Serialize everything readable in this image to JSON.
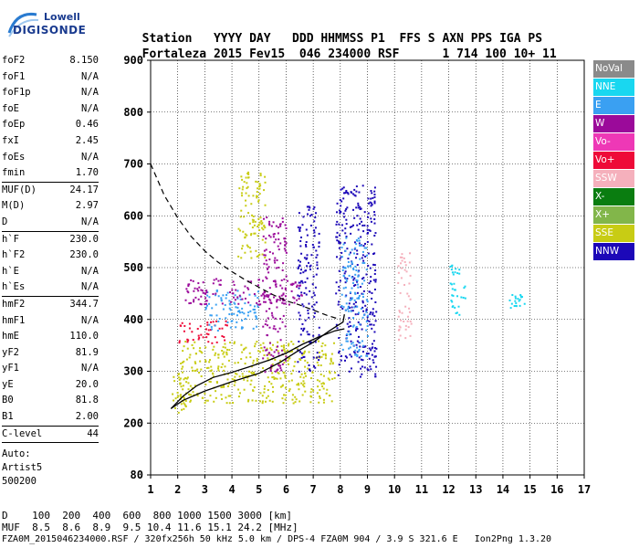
{
  "logo": {
    "line1": "Lowell",
    "line2": "DIGISONDE"
  },
  "header": {
    "labels": [
      "Station",
      "YYYY",
      "DAY",
      "DDD",
      "HHMMSS",
      "P1",
      "FFS",
      "S",
      "AXN",
      "PPS",
      "IGA",
      "PS"
    ],
    "values": [
      "Fortaleza",
      "2015",
      "Fev15",
      "046",
      "234000",
      "RSF",
      "",
      "1",
      "714",
      "100",
      "10+",
      "11"
    ]
  },
  "params": [
    {
      "k": "foF2",
      "v": "8.150"
    },
    {
      "k": "foF1",
      "v": "N/A"
    },
    {
      "k": "foF1p",
      "v": "N/A"
    },
    {
      "k": "foE",
      "v": "N/A"
    },
    {
      "k": "foEp",
      "v": "0.46"
    },
    {
      "k": "fxI",
      "v": "2.45"
    },
    {
      "k": "foEs",
      "v": "N/A"
    },
    {
      "k": "fmin",
      "v": "1.70"
    },
    {
      "k": "MUF(D)",
      "v": "24.17",
      "sep": true
    },
    {
      "k": "M(D)",
      "v": "2.97"
    },
    {
      "k": "D",
      "v": "N/A"
    },
    {
      "k": "h`F",
      "v": "230.0",
      "sep": true
    },
    {
      "k": "h`F2",
      "v": "230.0"
    },
    {
      "k": "h`E",
      "v": "N/A"
    },
    {
      "k": "h`Es",
      "v": "N/A"
    },
    {
      "k": "hmF2",
      "v": "344.7",
      "sep": true
    },
    {
      "k": "hmF1",
      "v": "N/A"
    },
    {
      "k": "hmE",
      "v": "110.0"
    },
    {
      "k": "yF2",
      "v": "81.9"
    },
    {
      "k": "yF1",
      "v": "N/A"
    },
    {
      "k": "yE",
      "v": "20.0"
    },
    {
      "k": "B0",
      "v": "81.8"
    },
    {
      "k": "B1",
      "v": "2.00"
    },
    {
      "k": "C-level",
      "v": "44",
      "sep": true
    }
  ],
  "auto": {
    "line1": "Auto:",
    "line2": "Artist5",
    "line3": "500200"
  },
  "legend": [
    {
      "label": "NoVal",
      "color": "#8a8a8a"
    },
    {
      "label": "NNE",
      "color": "#19d7f0"
    },
    {
      "label": "E",
      "color": "#3aa0f2"
    },
    {
      "label": "W",
      "color": "#9b0a9a"
    },
    {
      "label": "Vo-",
      "color": "#ee38b6"
    },
    {
      "label": "Vo+",
      "color": "#ee0a38"
    },
    {
      "label": "SSW",
      "color": "#f5b0bc"
    },
    {
      "label": "X-",
      "color": "#0a7d10"
    },
    {
      "label": "X+",
      "color": "#82b64a"
    },
    {
      "label": "SSE",
      "color": "#c8cc14"
    },
    {
      "label": "NNW",
      "color": "#1c08b8"
    }
  ],
  "chart_data": {
    "type": "scatter",
    "title": "",
    "xlabel": "",
    "ylabel": "",
    "xlim": [
      1,
      17
    ],
    "ylim": [
      80,
      900
    ],
    "x_ticks": [
      "1",
      "2",
      "3",
      "4",
      "5",
      "6",
      "7",
      "8",
      "9",
      "10",
      "11",
      "12",
      "13",
      "14",
      "15",
      "16",
      "17"
    ],
    "y_ticks": [
      "80",
      "200",
      "300",
      "400",
      "500",
      "600",
      "700",
      "800",
      "900"
    ],
    "y_tick_values": [
      80,
      200,
      300,
      400,
      500,
      600,
      700,
      800,
      900
    ],
    "grid": true,
    "profile_curve": [
      [
        1.75,
        228
      ],
      [
        2.2,
        244
      ],
      [
        3,
        262
      ],
      [
        4,
        280
      ],
      [
        5,
        296
      ],
      [
        5.8,
        318
      ],
      [
        6.4,
        338
      ],
      [
        7,
        356
      ],
      [
        7.6,
        378
      ],
      [
        8.1,
        395
      ],
      [
        8.15,
        410
      ]
    ],
    "trace_curve": [
      [
        1.75,
        228
      ],
      [
        2.2,
        252
      ],
      [
        2.7,
        272
      ],
      [
        3.3,
        288
      ],
      [
        4,
        298
      ],
      [
        4.6,
        308
      ],
      [
        5.4,
        322
      ],
      [
        6,
        335
      ],
      [
        6.6,
        352
      ],
      [
        7.2,
        366
      ],
      [
        7.8,
        378
      ],
      [
        8.15,
        382
      ]
    ],
    "muf_curve": [
      [
        1.0,
        700
      ],
      [
        1.5,
        640
      ],
      [
        2,
        596
      ],
      [
        2.5,
        560
      ],
      [
        3,
        532
      ],
      [
        3.5,
        510
      ],
      [
        4,
        492
      ],
      [
        4.5,
        476
      ],
      [
        5,
        462
      ],
      [
        5.5,
        448
      ],
      [
        6,
        436
      ],
      [
        6.5,
        428
      ],
      [
        7,
        418
      ],
      [
        7.5,
        408
      ],
      [
        8,
        400
      ]
    ],
    "echo_regions": [
      {
        "x": [
          1.7,
          2.4
        ],
        "y": [
          220,
          300
        ],
        "direction": "SSE"
      },
      {
        "x": [
          2.0,
          7.8
        ],
        "y": [
          240,
          360
        ],
        "direction": "SSE"
      },
      {
        "x": [
          2.0,
          3.8
        ],
        "y": [
          355,
          400
        ],
        "direction": "Vo+"
      },
      {
        "x": [
          3.0,
          5.0
        ],
        "y": [
          380,
          460
        ],
        "direction": "E"
      },
      {
        "x": [
          2.2,
          6.6
        ],
        "y": [
          430,
          480
        ],
        "direction": "W"
      },
      {
        "x": [
          4.2,
          5.2
        ],
        "y": [
          520,
          700
        ],
        "direction": "SSE"
      },
      {
        "x": [
          5.1,
          6.0
        ],
        "y": [
          300,
          600
        ],
        "direction": "W"
      },
      {
        "x": [
          6.4,
          7.2
        ],
        "y": [
          300,
          620
        ],
        "direction": "NNW"
      },
      {
        "x": [
          7.8,
          9.3
        ],
        "y": [
          290,
          660
        ],
        "direction": "NNW"
      },
      {
        "x": [
          8.0,
          9.0
        ],
        "y": [
          330,
          560
        ],
        "direction": "E"
      },
      {
        "x": [
          10.1,
          10.6
        ],
        "y": [
          360,
          530
        ],
        "direction": "SSW"
      },
      {
        "x": [
          12.0,
          12.6
        ],
        "y": [
          410,
          510
        ],
        "direction": "NNE"
      },
      {
        "x": [
          14.2,
          14.8
        ],
        "y": [
          420,
          450
        ],
        "direction": "NNE"
      }
    ]
  },
  "bottom": {
    "d_label": "D",
    "d_values": [
      "100",
      "200",
      "400",
      "600",
      "800",
      "1000",
      "1500",
      "3000",
      "[km]"
    ],
    "muf_label": "MUF",
    "muf_values": [
      "8.5",
      "8.6",
      "8.9",
      "9.5",
      "10.4",
      "11.6",
      "15.1",
      "24.2",
      "[MHz]"
    ]
  },
  "footer": "FZA0M_2015046234000.RSF / 320fx256h 50 kHz 5.0 km / DPS-4 FZA0M 904 / 3.9 S 321.6 E   Ion2Png 1.3.20"
}
